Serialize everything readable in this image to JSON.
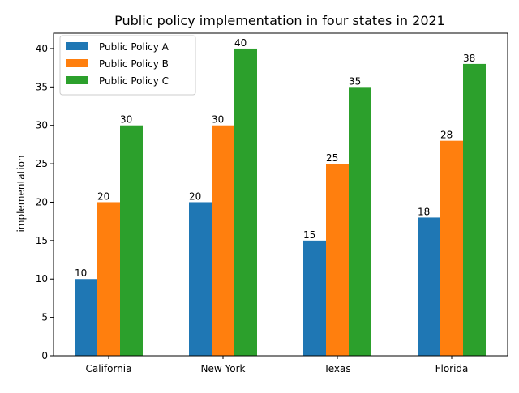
{
  "chart_data": {
    "type": "bar",
    "title": "Public policy implementation in four states in 2021",
    "xlabel": "",
    "ylabel": "implementation",
    "categories": [
      "California",
      "New York",
      "Texas",
      "Florida"
    ],
    "series": [
      {
        "name": "Public Policy A",
        "values": [
          10,
          20,
          15,
          18
        ],
        "color": "#1f77b4"
      },
      {
        "name": "Public Policy B",
        "values": [
          20,
          30,
          25,
          28
        ],
        "color": "#ff7f0e"
      },
      {
        "name": "Public Policy C",
        "values": [
          30,
          40,
          35,
          38
        ],
        "color": "#2ca02c"
      }
    ],
    "data_labels": {
      "Public Policy A": [
        "10",
        "20",
        "15",
        "18"
      ],
      "Public Policy B": [
        "20",
        "30",
        "25",
        "28"
      ],
      "Public Policy C": [
        "30",
        "40",
        "35",
        "38"
      ]
    },
    "ylim": [
      0,
      42
    ],
    "yticks": [
      "0",
      "5",
      "10",
      "15",
      "20",
      "25",
      "30",
      "35",
      "40"
    ],
    "grid": false,
    "legend_position": "top-left"
  }
}
